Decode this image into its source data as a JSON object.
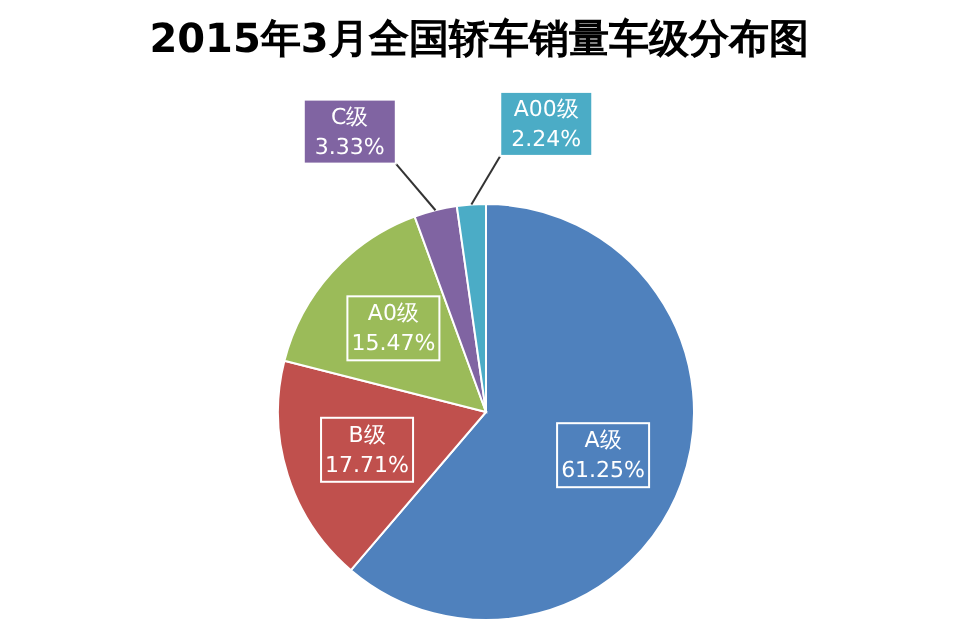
{
  "chart_data": {
    "type": "pie",
    "title": "2015年3月全国轿车销量车级分布图",
    "categories": [
      "A级",
      "B级",
      "A0级",
      "C级",
      "A00级"
    ],
    "values": [
      61.25,
      17.71,
      15.47,
      3.33,
      2.24
    ],
    "value_labels": [
      "61.25%",
      "17.71%",
      "15.47%",
      "3.33%",
      "2.24%"
    ],
    "colors": [
      "#4f81bd",
      "#c0504d",
      "#9bbb59",
      "#8064a2",
      "#4bacc6"
    ]
  }
}
